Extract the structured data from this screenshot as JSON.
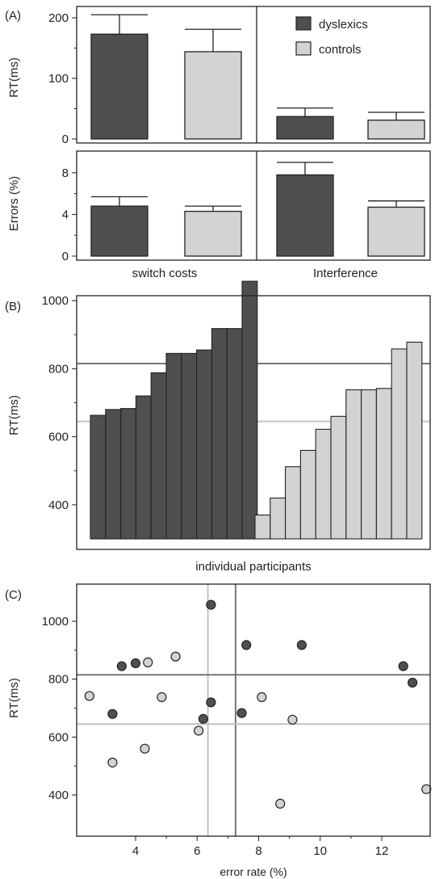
{
  "chart_data": [
    {
      "panel_label": "(A)",
      "type": "bar",
      "ylabel": "RT(ms)",
      "ylim": [
        0,
        200
      ],
      "yticks": [
        "0",
        "100",
        "200"
      ],
      "legend": [
        "dyslexics",
        "controls"
      ],
      "legend_position": "top-right",
      "categories": [
        "switch costs",
        "Interference"
      ],
      "series": [
        {
          "name": "dyslexics",
          "color": "#4f4f4f",
          "values": [
            173,
            37
          ],
          "errors": [
            32,
            14
          ]
        },
        {
          "name": "controls",
          "color": "#d3d3d3",
          "values": [
            144,
            31
          ],
          "errors": [
            37,
            13
          ]
        }
      ]
    },
    {
      "type": "bar",
      "ylabel": "Errors (%)",
      "ylim": [
        0,
        9
      ],
      "yticks": [
        "0",
        "4",
        "8"
      ],
      "categories": [
        "switch costs",
        "Interference"
      ],
      "series": [
        {
          "name": "dyslexics",
          "color": "#4f4f4f",
          "values": [
            4.8,
            7.8
          ],
          "errors": [
            0.9,
            1.2
          ]
        },
        {
          "name": "controls",
          "color": "#d3d3d3",
          "values": [
            4.3,
            4.7
          ],
          "errors": [
            0.5,
            0.6
          ]
        }
      ]
    },
    {
      "panel_label": "(B)",
      "type": "bar",
      "ylabel": "RT(ms)",
      "xlabel": "individual participants",
      "ylim": [
        300,
        1100
      ],
      "yticks": [
        "400",
        "600",
        "800",
        "1000"
      ],
      "series": [
        {
          "name": "dyslexics",
          "color": "#4f4f4f",
          "values": [
            663,
            680,
            683,
            720,
            788,
            845,
            845,
            855,
            918,
            918,
            1057
          ]
        },
        {
          "name": "controls",
          "color": "#d3d3d3",
          "values": [
            370,
            420,
            512,
            560,
            622,
            660,
            738,
            738,
            742,
            858,
            878
          ]
        }
      ],
      "reference_lines": [
        {
          "group": "dyslexics",
          "y": 815,
          "color": "#777777"
        },
        {
          "group": "controls",
          "y": 645,
          "color": "#c4c4c4"
        }
      ]
    },
    {
      "panel_label": "(C)",
      "type": "scatter",
      "ylabel": "RT(ms)",
      "xlabel": "error rate (%)",
      "xlim": [
        2.2,
        13.8
      ],
      "ylim": [
        300,
        1120
      ],
      "xticks": [
        "4",
        "6",
        "8",
        "10",
        "12"
      ],
      "yticks": [
        "400",
        "600",
        "800",
        "1000"
      ],
      "series": [
        {
          "name": "dyslexics",
          "color": "#4f4f4f",
          "points": [
            [
              6.45,
              1057
            ],
            [
              7.6,
              918
            ],
            [
              9.4,
              918
            ],
            [
              3.55,
              845
            ],
            [
              4.0,
              855
            ],
            [
              12.7,
              845
            ],
            [
              13.0,
              788
            ],
            [
              6.45,
              720
            ],
            [
              7.45,
              683
            ],
            [
              3.25,
              680
            ],
            [
              6.2,
              663
            ]
          ]
        },
        {
          "name": "controls",
          "color": "#d3d3d3",
          "points": [
            [
              5.3,
              878
            ],
            [
              4.4,
              858
            ],
            [
              2.5,
              742
            ],
            [
              4.85,
              738
            ],
            [
              8.1,
              738
            ],
            [
              9.1,
              660
            ],
            [
              6.05,
              622
            ],
            [
              4.3,
              560
            ],
            [
              3.25,
              512
            ],
            [
              8.7,
              370
            ],
            [
              13.45,
              420
            ]
          ]
        }
      ],
      "reference_lines": [
        {
          "axis": "x",
          "group": "dyslexics",
          "value": 7.25,
          "color": "#777777"
        },
        {
          "axis": "x",
          "group": "controls",
          "value": 6.35,
          "color": "#c4c4c4"
        },
        {
          "axis": "y",
          "group": "dyslexics",
          "value": 815,
          "color": "#777777"
        },
        {
          "axis": "y",
          "group": "controls",
          "value": 645,
          "color": "#c4c4c4"
        }
      ]
    }
  ]
}
